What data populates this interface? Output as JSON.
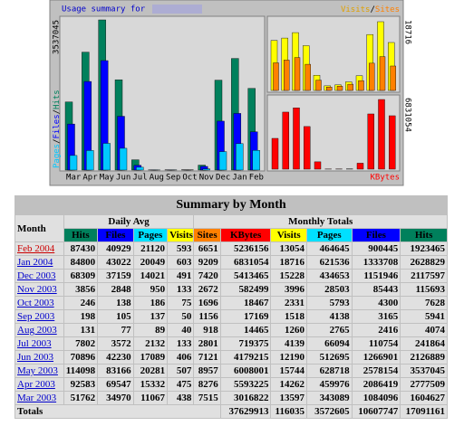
{
  "chart": {
    "title": "Usage summary for",
    "months": [
      "Mar",
      "Apr",
      "May",
      "Jun",
      "Jul",
      "Aug",
      "Sep",
      "Oct",
      "Nov",
      "Dec",
      "Jan",
      "Feb"
    ],
    "left_legend": [
      {
        "name": "Pages",
        "color": "#00c8ff"
      },
      {
        "name": "Files",
        "color": "#0000ff"
      },
      {
        "name": "Hits",
        "color": "#00805c"
      }
    ],
    "right_legend": [
      {
        "name": "Visits",
        "color": "#e0a000"
      },
      {
        "name": "Sites",
        "color": "#ff8000"
      }
    ],
    "separator": "/",
    "kbytes_legend": {
      "name": "KBytes",
      "color": "#ff0000"
    },
    "visits_color": "#ffff00",
    "hits_ylim": [
      0,
      3537045
    ],
    "visits_ylim": [
      0,
      18716
    ],
    "kbytes_ylim": [
      0,
      6831054
    ]
  },
  "table": {
    "title": "Summary by Month",
    "month_header": "Month",
    "daily_header": "Daily Avg",
    "monthly_header": "Monthly Totals",
    "columns": [
      {
        "name": "Hits",
        "color": "#00805c"
      },
      {
        "name": "Files",
        "color": "#0000ff"
      },
      {
        "name": "Pages",
        "color": "#00e0ff"
      },
      {
        "name": "Visits",
        "color": "#ffff00"
      },
      {
        "name": "Sites",
        "color": "#ff8000"
      },
      {
        "name": "KBytes",
        "color": "#ff0000"
      },
      {
        "name": "Visits",
        "color": "#ffff00"
      },
      {
        "name": "Pages",
        "color": "#00e0ff"
      },
      {
        "name": "Files",
        "color": "#0000ff"
      },
      {
        "name": "Hits",
        "color": "#00805c"
      }
    ],
    "rows": [
      {
        "month": "Feb 2004",
        "values": [
          87430,
          40929,
          21120,
          593,
          6651,
          5236156,
          13054,
          464645,
          900445,
          1923465
        ]
      },
      {
        "month": "Jan 2004",
        "values": [
          84800,
          43022,
          20049,
          603,
          9209,
          6831054,
          18716,
          621536,
          1333708,
          2628829
        ]
      },
      {
        "month": "Dec 2003",
        "values": [
          68309,
          37159,
          14021,
          491,
          7420,
          5413465,
          15228,
          434653,
          1151946,
          2117597
        ]
      },
      {
        "month": "Nov 2003",
        "values": [
          3856,
          2848,
          950,
          133,
          2672,
          582499,
          3996,
          28503,
          85443,
          115693
        ]
      },
      {
        "month": "Oct 2003",
        "values": [
          246,
          138,
          186,
          75,
          1696,
          18467,
          2331,
          5793,
          4300,
          7628
        ]
      },
      {
        "month": "Sep 2003",
        "values": [
          198,
          105,
          137,
          50,
          1156,
          17169,
          1518,
          4138,
          3165,
          5941
        ]
      },
      {
        "month": "Aug 2003",
        "values": [
          131,
          77,
          89,
          40,
          918,
          14465,
          1260,
          2765,
          2416,
          4074
        ]
      },
      {
        "month": "Jul 2003",
        "values": [
          7802,
          3572,
          2132,
          133,
          2801,
          719375,
          4139,
          66094,
          110754,
          241864
        ]
      },
      {
        "month": "Jun 2003",
        "values": [
          70896,
          42230,
          17089,
          406,
          7121,
          4179215,
          12190,
          512695,
          1266901,
          2126889
        ]
      },
      {
        "month": "May 2003",
        "values": [
          114098,
          83166,
          20281,
          507,
          8957,
          6008001,
          15744,
          628718,
          2578154,
          3537045
        ]
      },
      {
        "month": "Apr 2003",
        "values": [
          92583,
          69547,
          15332,
          475,
          8276,
          5593225,
          14262,
          459976,
          2086419,
          2777509
        ]
      },
      {
        "month": "Mar 2003",
        "values": [
          51762,
          34970,
          11067,
          438,
          7515,
          3016822,
          13597,
          343089,
          1084096,
          1604627
        ]
      }
    ],
    "totals": {
      "label": "Totals",
      "values": [
        37629913,
        116035,
        3572605,
        10607747,
        17091161
      ]
    }
  }
}
